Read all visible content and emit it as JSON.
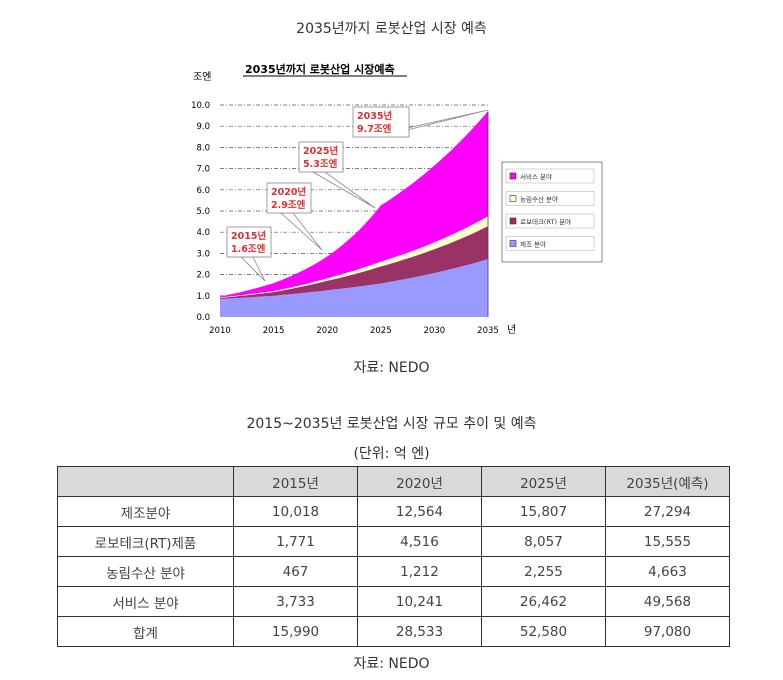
{
  "page_title": "2035년까지 로봇산업 시장 예측",
  "source_label": "자료: NEDO",
  "chart_data": {
    "type": "area",
    "title": "2035년까지 로봇산업 시장예측",
    "ylabel": "조엔",
    "xlabel": "년",
    "ylim": [
      0,
      10
    ],
    "xlim": [
      2010,
      2035
    ],
    "x_ticks": [
      "2010",
      "2015",
      "2020",
      "2025",
      "2030",
      "2035"
    ],
    "y_ticks": [
      "0.0",
      "1.0",
      "2.0",
      "3.0",
      "4.0",
      "5.0",
      "6.0",
      "7.0",
      "8.0",
      "9.0",
      "10.0"
    ],
    "x": [
      2010,
      2015,
      2020,
      2025,
      2035
    ],
    "stacked": true,
    "grid": true,
    "legend_position": "right",
    "series": [
      {
        "name": "제조 분야",
        "color": "#9999ff",
        "values": [
          0.85,
          1.0018,
          1.2564,
          1.5807,
          2.7294
        ]
      },
      {
        "name": "로보테크(RT) 분야",
        "color": "#993366",
        "values": [
          0.05,
          0.1771,
          0.4516,
          0.8057,
          1.5555
        ]
      },
      {
        "name": "농림수산 분야",
        "color": "#ffffcc",
        "values": [
          0.02,
          0.0467,
          0.1212,
          0.2255,
          0.4663
        ]
      },
      {
        "name": "서비스 분야",
        "color": "#ff00ff",
        "values": [
          0.05,
          0.3733,
          1.0241,
          2.6462,
          4.9568
        ]
      }
    ],
    "annotations": [
      {
        "year": "2015년",
        "value": "1.6조엔"
      },
      {
        "year": "2020년",
        "value": "2.9조엔"
      },
      {
        "year": "2025년",
        "value": "5.3조엔"
      },
      {
        "year": "2035년",
        "value": "9.7조엔"
      }
    ]
  },
  "table": {
    "title": "2015~2035년 로봇산업 시장 규모 추이 및 예측",
    "unit": "(단위: 억 엔)",
    "headers": [
      "",
      "2015년",
      "2020년",
      "2025년",
      "2035년(예측)"
    ],
    "rows": [
      [
        "제조분야",
        "10,018",
        "12,564",
        "15,807",
        "27,294"
      ],
      [
        "로보테크(RT)제품",
        "1,771",
        "4,516",
        "8,057",
        "15,555"
      ],
      [
        "농림수산 분야",
        "467",
        "1,212",
        "2,255",
        "4,663"
      ],
      [
        "서비스 분야",
        "3,733",
        "10,241",
        "26,462",
        "49,568"
      ],
      [
        "합계",
        "15,990",
        "28,533",
        "52,580",
        "97,080"
      ]
    ]
  }
}
